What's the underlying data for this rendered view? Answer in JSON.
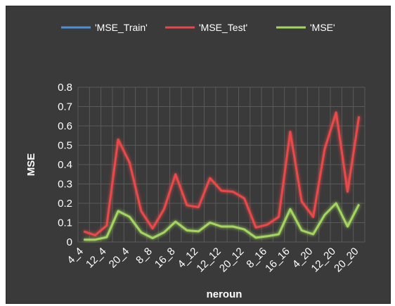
{
  "chart_data": {
    "type": "line",
    "xlabel": "neroun",
    "ylabel": "MSE",
    "ylim": [
      0,
      0.8
    ],
    "yticks": [
      "0",
      "0.1",
      "0.2",
      "0.3",
      "0.4",
      "0.5",
      "0.6",
      "0.7",
      "0.8"
    ],
    "grid": true,
    "legend_position": "top",
    "categories": [
      "4_4",
      "8_4",
      "12_4",
      "16_4",
      "20_4",
      "4_8",
      "8_8",
      "12_8",
      "16_8",
      "20_8",
      "4_12",
      "8_12",
      "12_12",
      "16_12",
      "20_12",
      "4_16",
      "8_16",
      "12_16",
      "16_16",
      "20_16",
      "4_20",
      "8_20",
      "12_20",
      "16_20",
      "20_20"
    ],
    "visible_tick_labels": [
      "4_4",
      "12_4",
      "20_4",
      "8_8",
      "16_8",
      "4_12",
      "12_12",
      "20_12",
      "8_16",
      "16_16",
      "4_20",
      "12_20",
      "20_20"
    ],
    "series": [
      {
        "name": "'MSE_Train'",
        "color": "#4f8fd6",
        "values": [
          0.002,
          0.002,
          0.002,
          0.002,
          0.002,
          0.002,
          0.002,
          0.002,
          0.002,
          0.002,
          0.002,
          0.002,
          0.002,
          0.002,
          0.002,
          0.002,
          0.002,
          0.002,
          0.002,
          0.002,
          0.002,
          0.002,
          0.002,
          0.002,
          0.002
        ]
      },
      {
        "name": "'MSE_Test'",
        "color": "#e8484a",
        "values": [
          0.055,
          0.035,
          0.085,
          0.53,
          0.41,
          0.16,
          0.07,
          0.17,
          0.35,
          0.19,
          0.18,
          0.33,
          0.265,
          0.26,
          0.225,
          0.075,
          0.09,
          0.13,
          0.57,
          0.21,
          0.13,
          0.48,
          0.67,
          0.26,
          0.65
        ]
      },
      {
        "name": "'MSE'",
        "color": "#a4d65e",
        "values": [
          0.012,
          0.012,
          0.025,
          0.16,
          0.13,
          0.05,
          0.02,
          0.05,
          0.105,
          0.06,
          0.055,
          0.1,
          0.08,
          0.08,
          0.065,
          0.022,
          0.03,
          0.04,
          0.17,
          0.06,
          0.04,
          0.14,
          0.2,
          0.08,
          0.195
        ]
      }
    ]
  }
}
